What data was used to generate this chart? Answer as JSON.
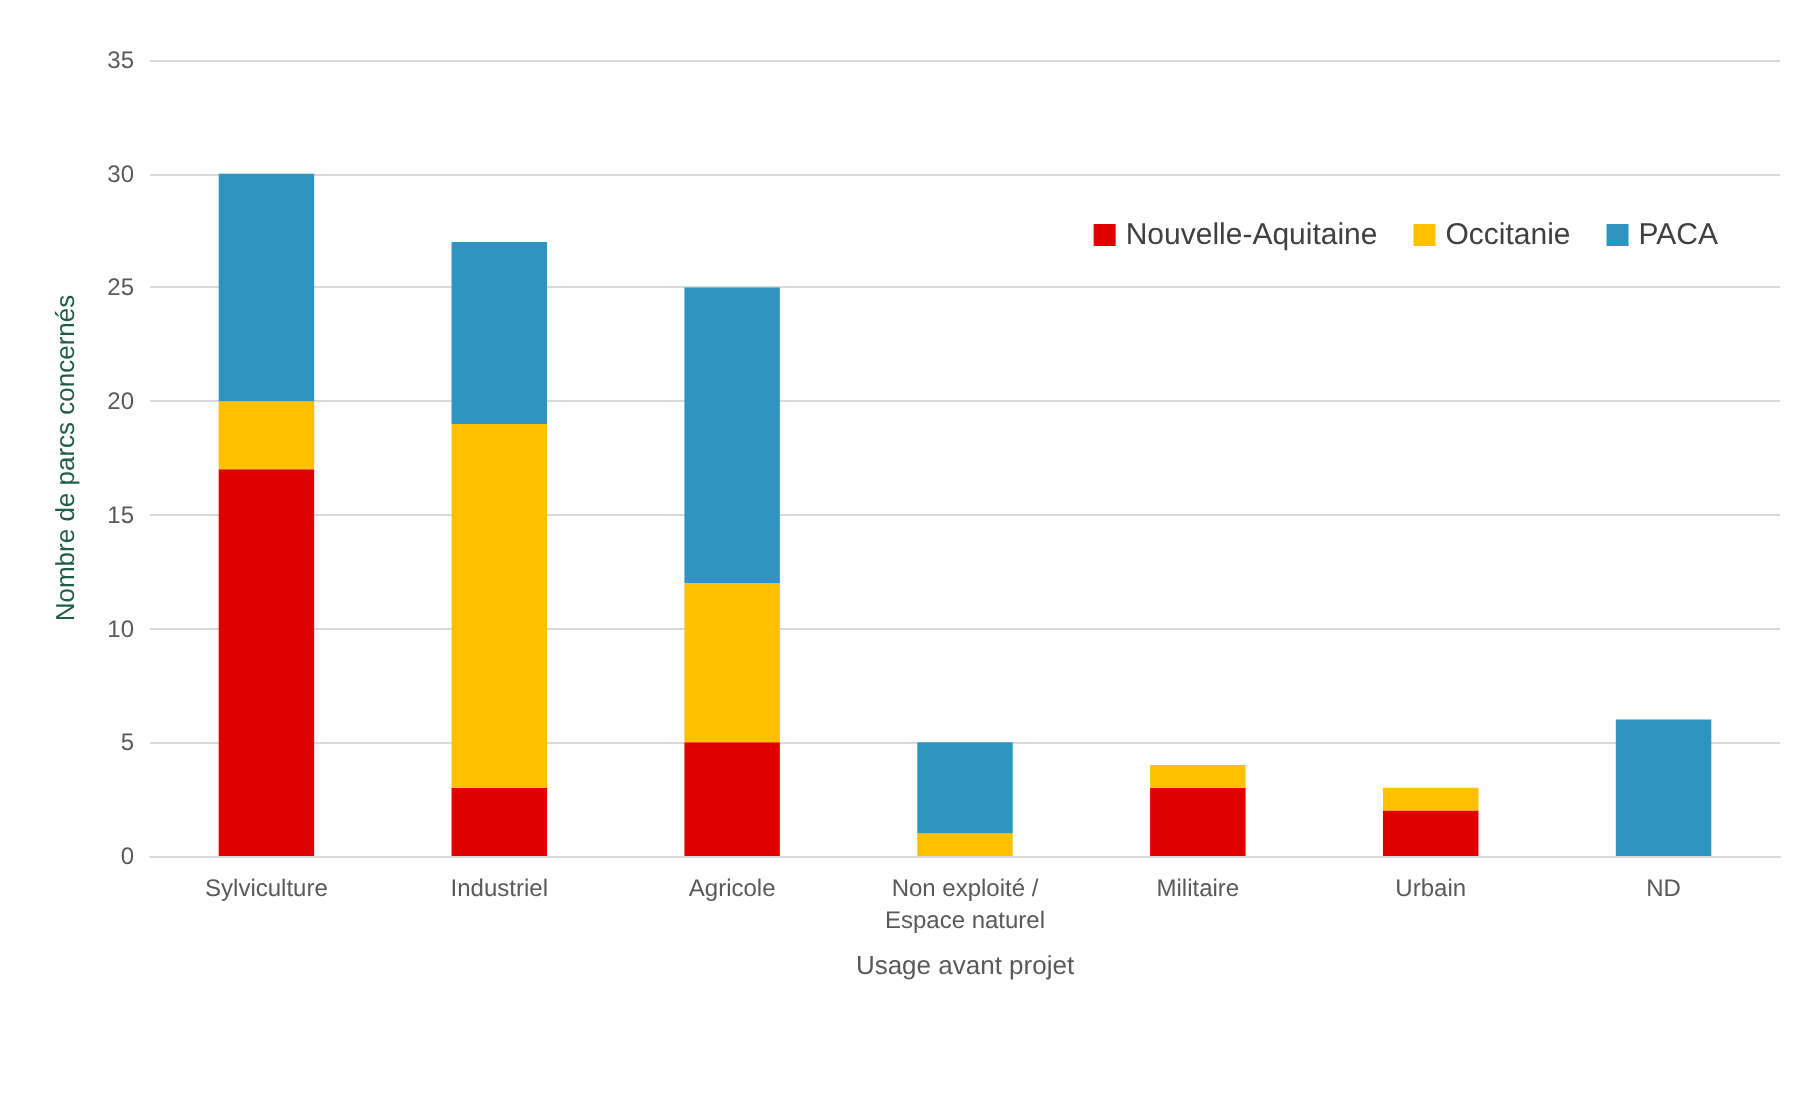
{
  "chart_data": {
    "type": "bar",
    "stacked": true,
    "xlabel": "Usage avant projet",
    "ylabel": "Nombre de parcs concernés",
    "categories": [
      "Sylviculture",
      "Industriel",
      "Agricole",
      "Non exploité /\nEspace naturel",
      "Militaire",
      "Urbain",
      "ND"
    ],
    "series": [
      {
        "name": "Nouvelle-Aquitaine",
        "color": "#e00000",
        "values": [
          17,
          3,
          5,
          0,
          3,
          2,
          0
        ]
      },
      {
        "name": "Occitanie",
        "color": "#ffc000",
        "values": [
          3,
          16,
          7,
          1,
          1,
          1,
          0
        ]
      },
      {
        "name": "PACA",
        "color": "#2e95c0",
        "values": [
          10,
          8,
          13,
          4,
          0,
          0,
          6
        ]
      }
    ],
    "ylim": [
      0,
      35
    ],
    "yticks": [
      0,
      5,
      10,
      15,
      20,
      25,
      30,
      35
    ],
    "grid": "y",
    "legend": "top right"
  }
}
